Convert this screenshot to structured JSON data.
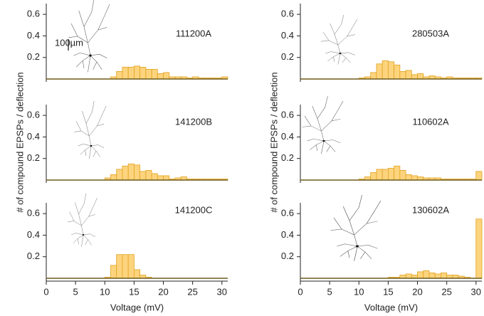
{
  "chart_data": [
    {
      "type": "histogram",
      "label": "111200A",
      "scale_bar_label": "100µm",
      "color": "#fdd47e",
      "edge_color": "#e2a21f",
      "bins": [
        10,
        11,
        12,
        13,
        14,
        15,
        16,
        17,
        18,
        19,
        20,
        21,
        22,
        23,
        24,
        25,
        26,
        27,
        28,
        29,
        30,
        31
      ],
      "values": [
        0,
        0.02,
        0.07,
        0.11,
        0.11,
        0.12,
        0.11,
        0.09,
        0.09,
        0.05,
        0.06,
        0.02,
        0.02,
        0.02,
        0.01,
        0.02,
        0.01,
        0.01,
        0.01,
        0.01,
        0.02
      ],
      "xlim": [
        0,
        31
      ],
      "ylim": [
        0,
        0.7
      ],
      "yticks": [
        0.2,
        0.4,
        0.6
      ]
    },
    {
      "type": "histogram",
      "label": "141200B",
      "ylabel": "# of compound EPSPs / deflection",
      "color": "#fdd47e",
      "edge_color": "#e2a21f",
      "bins": [
        10,
        11,
        12,
        13,
        14,
        15,
        16,
        17,
        18,
        19,
        20,
        21,
        22,
        23,
        24,
        25,
        26,
        27,
        28,
        29,
        30,
        31
      ],
      "values": [
        0.02,
        0.05,
        0.1,
        0.13,
        0.15,
        0.14,
        0.08,
        0.09,
        0.06,
        0.04,
        0.04,
        0.01,
        0.02,
        0.03,
        0.01,
        0.01,
        0.01,
        0.01,
        0.01,
        0.01,
        0.01
      ],
      "xlim": [
        0,
        31
      ],
      "ylim": [
        0,
        0.7
      ],
      "yticks": [
        0.2,
        0.4,
        0.6
      ]
    },
    {
      "type": "histogram",
      "label": "141200C",
      "xlabel": "Voltage (mV)",
      "color": "#fdd47e",
      "edge_color": "#e2a21f",
      "bins": [
        10,
        11,
        12,
        13,
        14,
        15,
        16,
        17,
        18,
        19,
        20,
        21,
        22,
        23,
        24,
        25,
        26,
        27,
        28,
        29,
        30,
        31
      ],
      "values": [
        0.01,
        0.12,
        0.22,
        0.22,
        0.22,
        0.08,
        0.03,
        0.01,
        0,
        0,
        0,
        0,
        0,
        0,
        0,
        0,
        0,
        0,
        0,
        0,
        0
      ],
      "xlim": [
        0,
        31
      ],
      "ylim": [
        0,
        0.7
      ],
      "yticks": [
        0.2,
        0.4,
        0.6
      ],
      "xticks": [
        0,
        5,
        10,
        15,
        20,
        25,
        30
      ]
    },
    {
      "type": "histogram",
      "label": "280503A",
      "color": "#fdd47e",
      "edge_color": "#e2a21f",
      "bins": [
        10,
        11,
        12,
        13,
        14,
        15,
        16,
        17,
        18,
        19,
        20,
        21,
        22,
        23,
        24,
        25,
        26,
        27,
        28,
        29,
        30,
        31
      ],
      "values": [
        0.01,
        0.02,
        0.06,
        0.14,
        0.17,
        0.16,
        0.13,
        0.07,
        0.08,
        0.04,
        0.05,
        0.02,
        0.03,
        0.02,
        0.01,
        0.02,
        0.01,
        0.01,
        0.01,
        0.01,
        0.01
      ],
      "xlim": [
        0,
        31
      ],
      "ylim": [
        0,
        0.7
      ],
      "yticks": [
        0.2,
        0.4,
        0.6
      ]
    },
    {
      "type": "histogram",
      "label": "110602A",
      "ylabel": "# of compound EPSPs / deflection",
      "color": "#fdd47e",
      "edge_color": "#e2a21f",
      "bins": [
        10,
        11,
        12,
        13,
        14,
        15,
        16,
        17,
        18,
        19,
        20,
        21,
        22,
        23,
        24,
        25,
        26,
        27,
        28,
        29,
        30,
        31
      ],
      "values": [
        0.01,
        0.03,
        0.07,
        0.1,
        0.1,
        0.11,
        0.13,
        0.09,
        0.05,
        0.04,
        0.03,
        0.02,
        0.02,
        0.02,
        0.01,
        0.01,
        0.01,
        0.01,
        0.01,
        0.01,
        0.08
      ],
      "xlim": [
        0,
        31
      ],
      "ylim": [
        0,
        0.7
      ],
      "yticks": [
        0.2,
        0.4,
        0.6
      ]
    },
    {
      "type": "histogram",
      "label": "130602A",
      "xlabel": "Voltage (mV)",
      "color": "#fdd47e",
      "edge_color": "#e2a21f",
      "bins": [
        10,
        11,
        12,
        13,
        14,
        15,
        16,
        17,
        18,
        19,
        20,
        21,
        22,
        23,
        24,
        25,
        26,
        27,
        28,
        29,
        30,
        31
      ],
      "values": [
        0,
        0,
        0,
        0,
        0,
        0.01,
        0.01,
        0.03,
        0.04,
        0.03,
        0.06,
        0.07,
        0.05,
        0.04,
        0.05,
        0.03,
        0.03,
        0.02,
        0.01,
        0,
        0.55
      ],
      "xlim": [
        0,
        31
      ],
      "ylim": [
        0,
        0.7
      ],
      "yticks": [
        0.2,
        0.4,
        0.6
      ],
      "xticks": [
        0,
        5,
        10,
        15,
        20,
        25,
        30
      ]
    }
  ]
}
